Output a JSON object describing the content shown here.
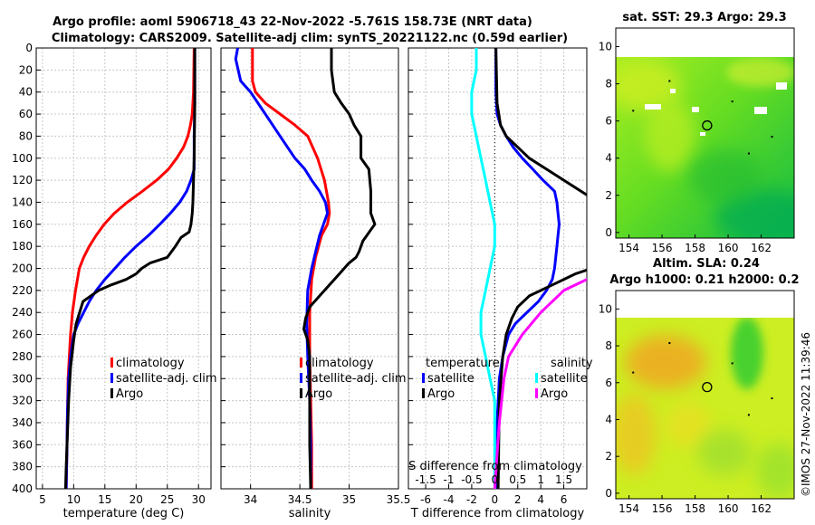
{
  "figure": {
    "title_line1": "Argo profile: aoml 5906718_43 22-Nov-2022 -5.761S 158.73E (NRT data)",
    "title_line2": "Climatology: CARS2009. Satellite-adj clim: synTS_20221122.nc (0.59d earlier)",
    "side_stamp": "©IMOS 27-Nov-2022 11:39:46"
  },
  "colors": {
    "red": "#ff0000",
    "blue": "#0000ff",
    "black": "#000000",
    "cyan": "#00ffff",
    "magenta": "#ff00ff",
    "grid": "#c8c8c8"
  },
  "chart_data": [
    {
      "id": "temperature",
      "type": "line",
      "xlabel": "temperature (deg C)",
      "xlim": [
        4,
        32
      ],
      "ylim": [
        0,
        400
      ],
      "y_reversed": true,
      "xticks": [
        5,
        10,
        15,
        20,
        25,
        30
      ],
      "xtick_labels": [
        "5",
        "10",
        "15",
        "20",
        "25",
        "30"
      ],
      "yticks": [
        0,
        20,
        40,
        60,
        80,
        100,
        120,
        140,
        160,
        180,
        200,
        220,
        240,
        260,
        280,
        300,
        320,
        340,
        360,
        380,
        400
      ],
      "ytick_labels": [
        "0",
        "20",
        "40",
        "60",
        "80",
        "100",
        "120",
        "140",
        "160",
        "180",
        "200",
        "220",
        "240",
        "260",
        "280",
        "300",
        "320",
        "340",
        "360",
        "380",
        "400"
      ],
      "legend": [
        "climatology",
        "satellite-adj. clim",
        "Argo"
      ],
      "series": [
        {
          "name": "climatology",
          "color": "#ff0000",
          "x": [
            29.3,
            29.2,
            29.0,
            28.7,
            28.3,
            27.6,
            26.5,
            25.2,
            23.3,
            21.0,
            18.6,
            16.5,
            14.9,
            13.6,
            12.5,
            11.6,
            10.9,
            10.3,
            9.8,
            9.5,
            9.3,
            9.1,
            9.0,
            8.9,
            8.8
          ],
          "y": [
            0,
            40,
            60,
            70,
            80,
            90,
            100,
            110,
            120,
            130,
            140,
            150,
            160,
            170,
            180,
            190,
            200,
            220,
            240,
            260,
            280,
            300,
            330,
            370,
            400
          ]
        },
        {
          "name": "satellite-adj. clim",
          "color": "#0000ff",
          "x": [
            29.4,
            29.4,
            29.3,
            29.3,
            28.8,
            28.1,
            27.0,
            25.5,
            23.8,
            22.0,
            20.0,
            18.2,
            16.6,
            15.0,
            13.6,
            12.5,
            11.6,
            10.7,
            10.0,
            9.5,
            9.2,
            9.0,
            8.9,
            8.8
          ],
          "y": [
            0,
            50,
            80,
            110,
            120,
            130,
            140,
            150,
            160,
            170,
            180,
            190,
            200,
            210,
            220,
            230,
            240,
            250,
            260,
            280,
            300,
            330,
            370,
            400
          ]
        },
        {
          "name": "Argo",
          "color": "#000000",
          "x": [
            29.4,
            29.4,
            29.3,
            29.2,
            29.1,
            29.0,
            28.8,
            28.5,
            27.2,
            26.3,
            25.0,
            22.3,
            20.9,
            20.0,
            18.4,
            16.0,
            14.0,
            11.5,
            10.4,
            10.0,
            9.5,
            9.2,
            9.0,
            8.8,
            8.7
          ],
          "y": [
            0,
            50,
            100,
            120,
            140,
            150,
            160,
            167,
            172,
            180,
            190,
            195,
            200,
            205,
            210,
            215,
            220,
            230,
            250,
            265,
            290,
            320,
            350,
            380,
            400
          ]
        }
      ]
    },
    {
      "id": "salinity",
      "type": "line",
      "xlabel": "salinity",
      "xlim": [
        33.7,
        35.5
      ],
      "ylim": [
        0,
        400
      ],
      "y_reversed": true,
      "xticks": [
        34,
        34.5,
        35,
        35.5
      ],
      "xtick_labels": [
        "34",
        "34.5",
        "35",
        "35.5"
      ],
      "legend": [
        "climatology",
        "satellite-adj. clim",
        "Argo"
      ],
      "series": [
        {
          "name": "climatology",
          "color": "#ff0000",
          "x": [
            34.02,
            34.02,
            34.05,
            34.15,
            34.3,
            34.45,
            34.58,
            34.68,
            34.75,
            34.79,
            34.8,
            34.78,
            34.72,
            34.66,
            34.62,
            34.6,
            34.6,
            34.61,
            34.62,
            34.62
          ],
          "y": [
            0,
            30,
            40,
            50,
            60,
            70,
            80,
            100,
            120,
            140,
            150,
            160,
            170,
            190,
            210,
            240,
            280,
            320,
            360,
            400
          ]
        },
        {
          "name": "satellite-adj. clim",
          "color": "#0000ff",
          "x": [
            33.87,
            33.85,
            33.9,
            34.0,
            34.15,
            34.3,
            34.45,
            34.55,
            34.62,
            34.7,
            34.76,
            34.78,
            34.7,
            34.62,
            34.58,
            34.57,
            34.58,
            34.6,
            34.61,
            34.61
          ],
          "y": [
            0,
            10,
            30,
            40,
            60,
            80,
            100,
            110,
            120,
            130,
            140,
            150,
            170,
            200,
            220,
            250,
            280,
            320,
            360,
            400
          ]
        },
        {
          "name": "Argo",
          "color": "#000000",
          "x": [
            34.82,
            34.82,
            34.85,
            34.92,
            35.0,
            35.05,
            35.12,
            35.12,
            35.2,
            35.22,
            35.22,
            35.26,
            35.22,
            35.18,
            35.14,
            35.12,
            35.1,
            35.07,
            35.0,
            34.9,
            34.8,
            34.7,
            34.6,
            34.56,
            34.54,
            34.58,
            34.6,
            34.6,
            34.6,
            34.61
          ],
          "y": [
            0,
            20,
            40,
            50,
            60,
            70,
            80,
            100,
            110,
            130,
            150,
            160,
            165,
            170,
            175,
            180,
            185,
            190,
            195,
            205,
            215,
            225,
            235,
            245,
            255,
            265,
            280,
            320,
            360,
            400
          ]
        }
      ]
    },
    {
      "id": "difference",
      "type": "line",
      "xlabel": "T difference from climatology",
      "xlabel2": "S difference from climatology",
      "xlim": [
        -7.5,
        8
      ],
      "ylim": [
        0,
        400
      ],
      "y_reversed": true,
      "xticks": [
        -6,
        -4,
        -2,
        0,
        2,
        4,
        6
      ],
      "xtick_labels": [
        "-6",
        "-4",
        "-2",
        "0",
        "2",
        "4",
        "6"
      ],
      "sticks": [
        -1.5,
        -1,
        -0.5,
        0,
        0.5,
        1,
        1.5
      ],
      "stick_labels": [
        "-1.5",
        "-1",
        "-0.5",
        "0",
        "0.5",
        "1",
        "1.5"
      ],
      "s_scale_note": "S difference 1 unit = 4 T units",
      "legend_t_header": "temperature",
      "legend_s_header": "salinity",
      "legend": [
        "satellite",
        "Argo",
        "satellite",
        "Argo"
      ],
      "series": [
        {
          "name": "T satellite",
          "color": "#0000ff",
          "x": [
            0.1,
            0.1,
            0.2,
            0.5,
            1.0,
            1.6,
            2.4,
            3.3,
            4.2,
            5.2,
            5.4,
            5.5,
            5.6,
            5.5,
            5.4,
            5.3,
            5.2,
            5.0,
            4.5,
            3.8,
            2.8,
            1.8,
            1.2,
            0.7,
            0.4,
            0.2,
            0.1
          ],
          "y": [
            0,
            40,
            60,
            70,
            80,
            90,
            100,
            110,
            120,
            130,
            140,
            150,
            160,
            170,
            180,
            190,
            200,
            210,
            220,
            230,
            240,
            250,
            260,
            280,
            300,
            340,
            400
          ]
        },
        {
          "name": "T Argo",
          "color": "#000000",
          "x": [
            0.1,
            0.2,
            0.5,
            1.0,
            2.0,
            3.0,
            4.5,
            6.0,
            7.5,
            9.0,
            9.0,
            9.0,
            7.0,
            5.0,
            3.0,
            2.0,
            1.5,
            1.0,
            0.7,
            0.4,
            0.3
          ],
          "y": [
            0,
            50,
            70,
            80,
            90,
            100,
            110,
            120,
            130,
            140,
            180,
            198,
            205,
            215,
            225,
            235,
            245,
            260,
            280,
            320,
            400
          ]
        },
        {
          "name": "S satellite",
          "color": "#00ffff",
          "x": [
            -0.4,
            -0.4,
            -0.5,
            -0.5,
            -0.4,
            -0.3,
            -0.2,
            -0.1,
            0,
            0,
            -0.1,
            -0.2,
            -0.3,
            -0.3,
            -0.2,
            -0.1,
            0,
            0,
            0
          ],
          "y": [
            0,
            20,
            40,
            60,
            80,
            100,
            120,
            140,
            160,
            180,
            200,
            220,
            240,
            260,
            280,
            300,
            320,
            360,
            400
          ]
        },
        {
          "name": "S Argo",
          "color": "#ff00ff",
          "x": [
            3.2,
            3.3,
            3.6,
            3.8,
            3.7,
            3.5,
            3.3,
            3.1,
            3.0,
            2.9,
            2.8,
            2.7,
            2.8,
            2.7,
            2.6,
            2.4,
            2.0,
            1.5,
            1.0,
            0.6,
            0.3,
            0.2,
            0.1,
            0
          ],
          "y": [
            0,
            20,
            40,
            60,
            80,
            90,
            100,
            110,
            120,
            140,
            150,
            160,
            170,
            180,
            190,
            200,
            210,
            220,
            240,
            260,
            280,
            300,
            340,
            400
          ]
        }
      ]
    },
    {
      "id": "sst_map",
      "type": "heatmap",
      "title": "sat. SST: 29.3 Argo: 29.3",
      "xlim": [
        153.2,
        164
      ],
      "ylim": [
        -0.3,
        11
      ],
      "xticks": [
        154,
        156,
        158,
        160,
        162
      ],
      "xtick_labels": [
        "154",
        "156",
        "158",
        "160",
        "162"
      ],
      "yticks": [
        0,
        2,
        4,
        6,
        8,
        10
      ],
      "ytick_labels": [
        "0",
        "2",
        "4",
        "6",
        "8",
        "10"
      ],
      "data_top": 10,
      "marker": {
        "lon": 158.73,
        "lat": 5.76
      }
    },
    {
      "id": "sla_map",
      "type": "heatmap",
      "title": "Altim. SLA: 0.24",
      "subtitle": "Argo h1000: 0.21 h2000: 0.2",
      "xlim": [
        153.2,
        164
      ],
      "ylim": [
        -0.3,
        11
      ],
      "xticks": [
        154,
        156,
        158,
        160,
        162
      ],
      "xtick_labels": [
        "154",
        "156",
        "158",
        "160",
        "162"
      ],
      "yticks": [
        0,
        2,
        4,
        6,
        8,
        10
      ],
      "ytick_labels": [
        "0",
        "2",
        "4",
        "6",
        "8",
        "10"
      ],
      "data_top": 10,
      "marker": {
        "lon": 158.73,
        "lat": 5.76
      }
    }
  ]
}
